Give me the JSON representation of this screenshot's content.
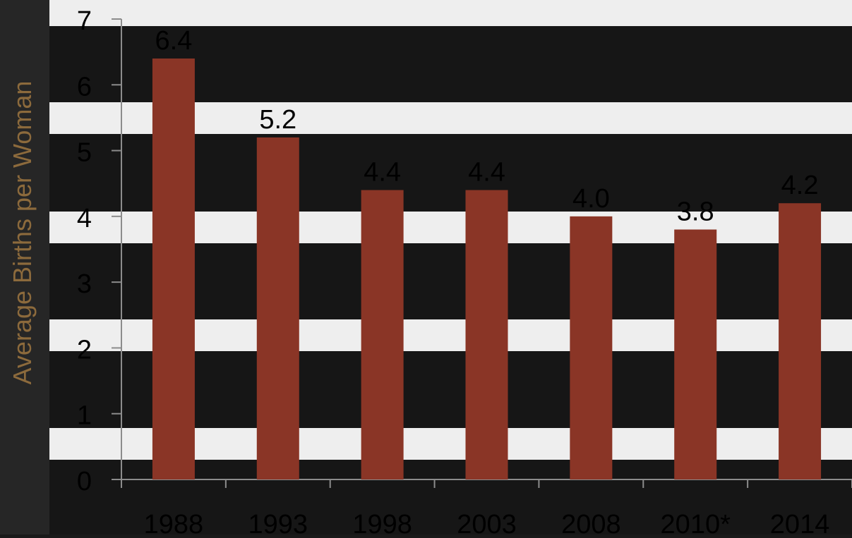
{
  "chart_data": {
    "type": "bar",
    "categories": [
      "1988",
      "1993",
      "1998",
      "2003",
      "2008",
      "2010*",
      "2014"
    ],
    "values": [
      6.4,
      5.2,
      4.4,
      4.4,
      4.0,
      3.8,
      4.2
    ],
    "data_labels": [
      "6.4",
      "5.2",
      "4.4",
      "4.4",
      "4.0",
      "3.8",
      "4.2"
    ],
    "title": "",
    "xlabel": "",
    "ylabel": "Average Births per Woman",
    "ylim": [
      0,
      7
    ],
    "yticks": [
      0,
      1,
      2,
      3,
      4,
      5,
      6,
      7
    ],
    "grid": false,
    "legend": "none"
  },
  "colors": {
    "bar": "#8a3526",
    "ylabel": "#8c6a3c",
    "axis": "#8c8c8c",
    "text": "#000000",
    "stripe_dark": "#161616",
    "stripe_light": "#eeeeee",
    "left_panel": "#262626"
  }
}
